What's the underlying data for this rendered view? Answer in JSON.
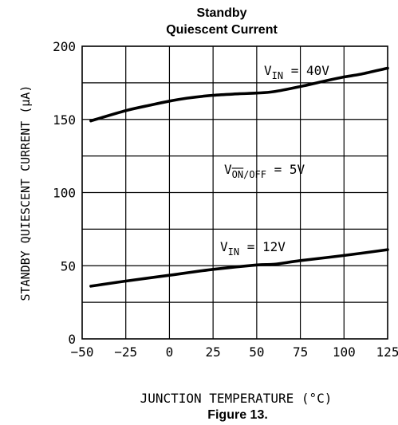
{
  "title_line1": "Standby",
  "title_line2": "Quiescent Current",
  "caption": "Figure 13.",
  "condition_label": {
    "main": "V",
    "sub": "ON/OFF",
    "suffix": " = 5V"
  },
  "chart_data": {
    "type": "line",
    "xlabel": "JUNCTION TEMPERATURE (°C)",
    "ylabel": "STANDBY QUIESCENT CURRENT (μA)",
    "xlim": [
      -50,
      125
    ],
    "ylim": [
      0,
      200
    ],
    "x_ticks": [
      -50,
      -25,
      0,
      25,
      50,
      75,
      100,
      125
    ],
    "y_ticks": [
      0,
      50,
      100,
      150,
      200
    ],
    "grid": true,
    "series": [
      {
        "name": "V_IN = 40V",
        "label": {
          "main": "V",
          "sub": "IN",
          "suffix": " = 40V"
        },
        "x": [
          -45,
          -25,
          -10,
          0,
          10,
          25,
          40,
          50,
          60,
          75,
          90,
          100,
          110,
          125
        ],
        "y": [
          149,
          156,
          160,
          162.5,
          164.5,
          166.5,
          167.5,
          168,
          169,
          172.5,
          176.5,
          179,
          181,
          185
        ]
      },
      {
        "name": "V_IN = 12V",
        "label": {
          "main": "V",
          "sub": "IN",
          "suffix": " = 12V"
        },
        "x": [
          -45,
          -25,
          0,
          25,
          50,
          60,
          75,
          100,
          125
        ],
        "y": [
          36,
          39.5,
          43.5,
          47.5,
          50.5,
          51,
          53.5,
          57,
          61
        ]
      }
    ]
  }
}
